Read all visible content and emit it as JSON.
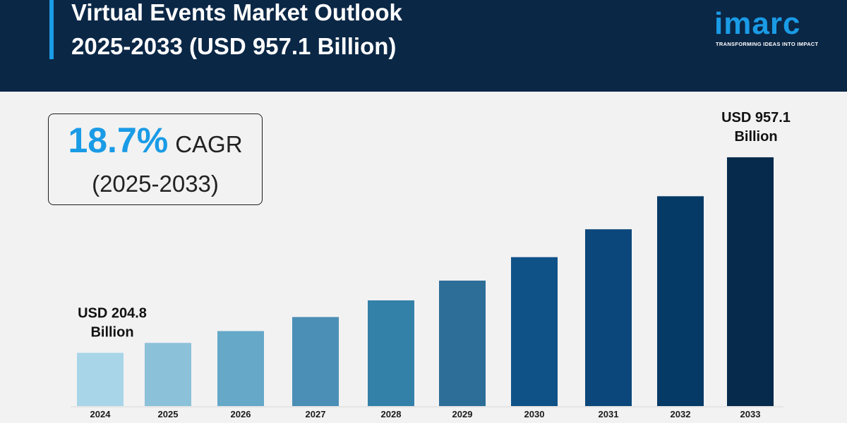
{
  "header": {
    "title_line1": "Virtual Events Market Outlook",
    "title_line2": "2025-2033 (USD 957.1 Billion)",
    "bg_color": "#0b2746",
    "accent_color": "#1a9be6"
  },
  "logo": {
    "wordmark": "imarc",
    "tagline": "TRANSFORMING IDEAS INTO IMPACT"
  },
  "cagr": {
    "value": "18.7%",
    "label": "CAGR",
    "period": "(2025-2033)"
  },
  "chart_data": {
    "type": "bar",
    "title": "",
    "xlabel": "",
    "ylabel": "",
    "categories": [
      "2024",
      "2025",
      "2026",
      "2027",
      "2028",
      "2029",
      "2030",
      "2031",
      "2032",
      "2033"
    ],
    "values": [
      204.8,
      243.1,
      288.6,
      342.6,
      406.7,
      482.7,
      573.0,
      680.2,
      807.3,
      957.1
    ],
    "ylim": [
      0,
      1000
    ],
    "grid": false,
    "colors": [
      "#a8d5e8",
      "#8cc1da",
      "#65a8c8",
      "#4b8fb6",
      "#3380a8",
      "#2d6e98",
      "#0f5288",
      "#0b477a",
      "#063a66",
      "#052a4c"
    ],
    "annotations": [
      {
        "category": "2024",
        "line1": "USD 204.8",
        "line2": "Billion"
      },
      {
        "category": "2033",
        "line1": "USD 957.1",
        "line2": "Billion"
      }
    ]
  }
}
